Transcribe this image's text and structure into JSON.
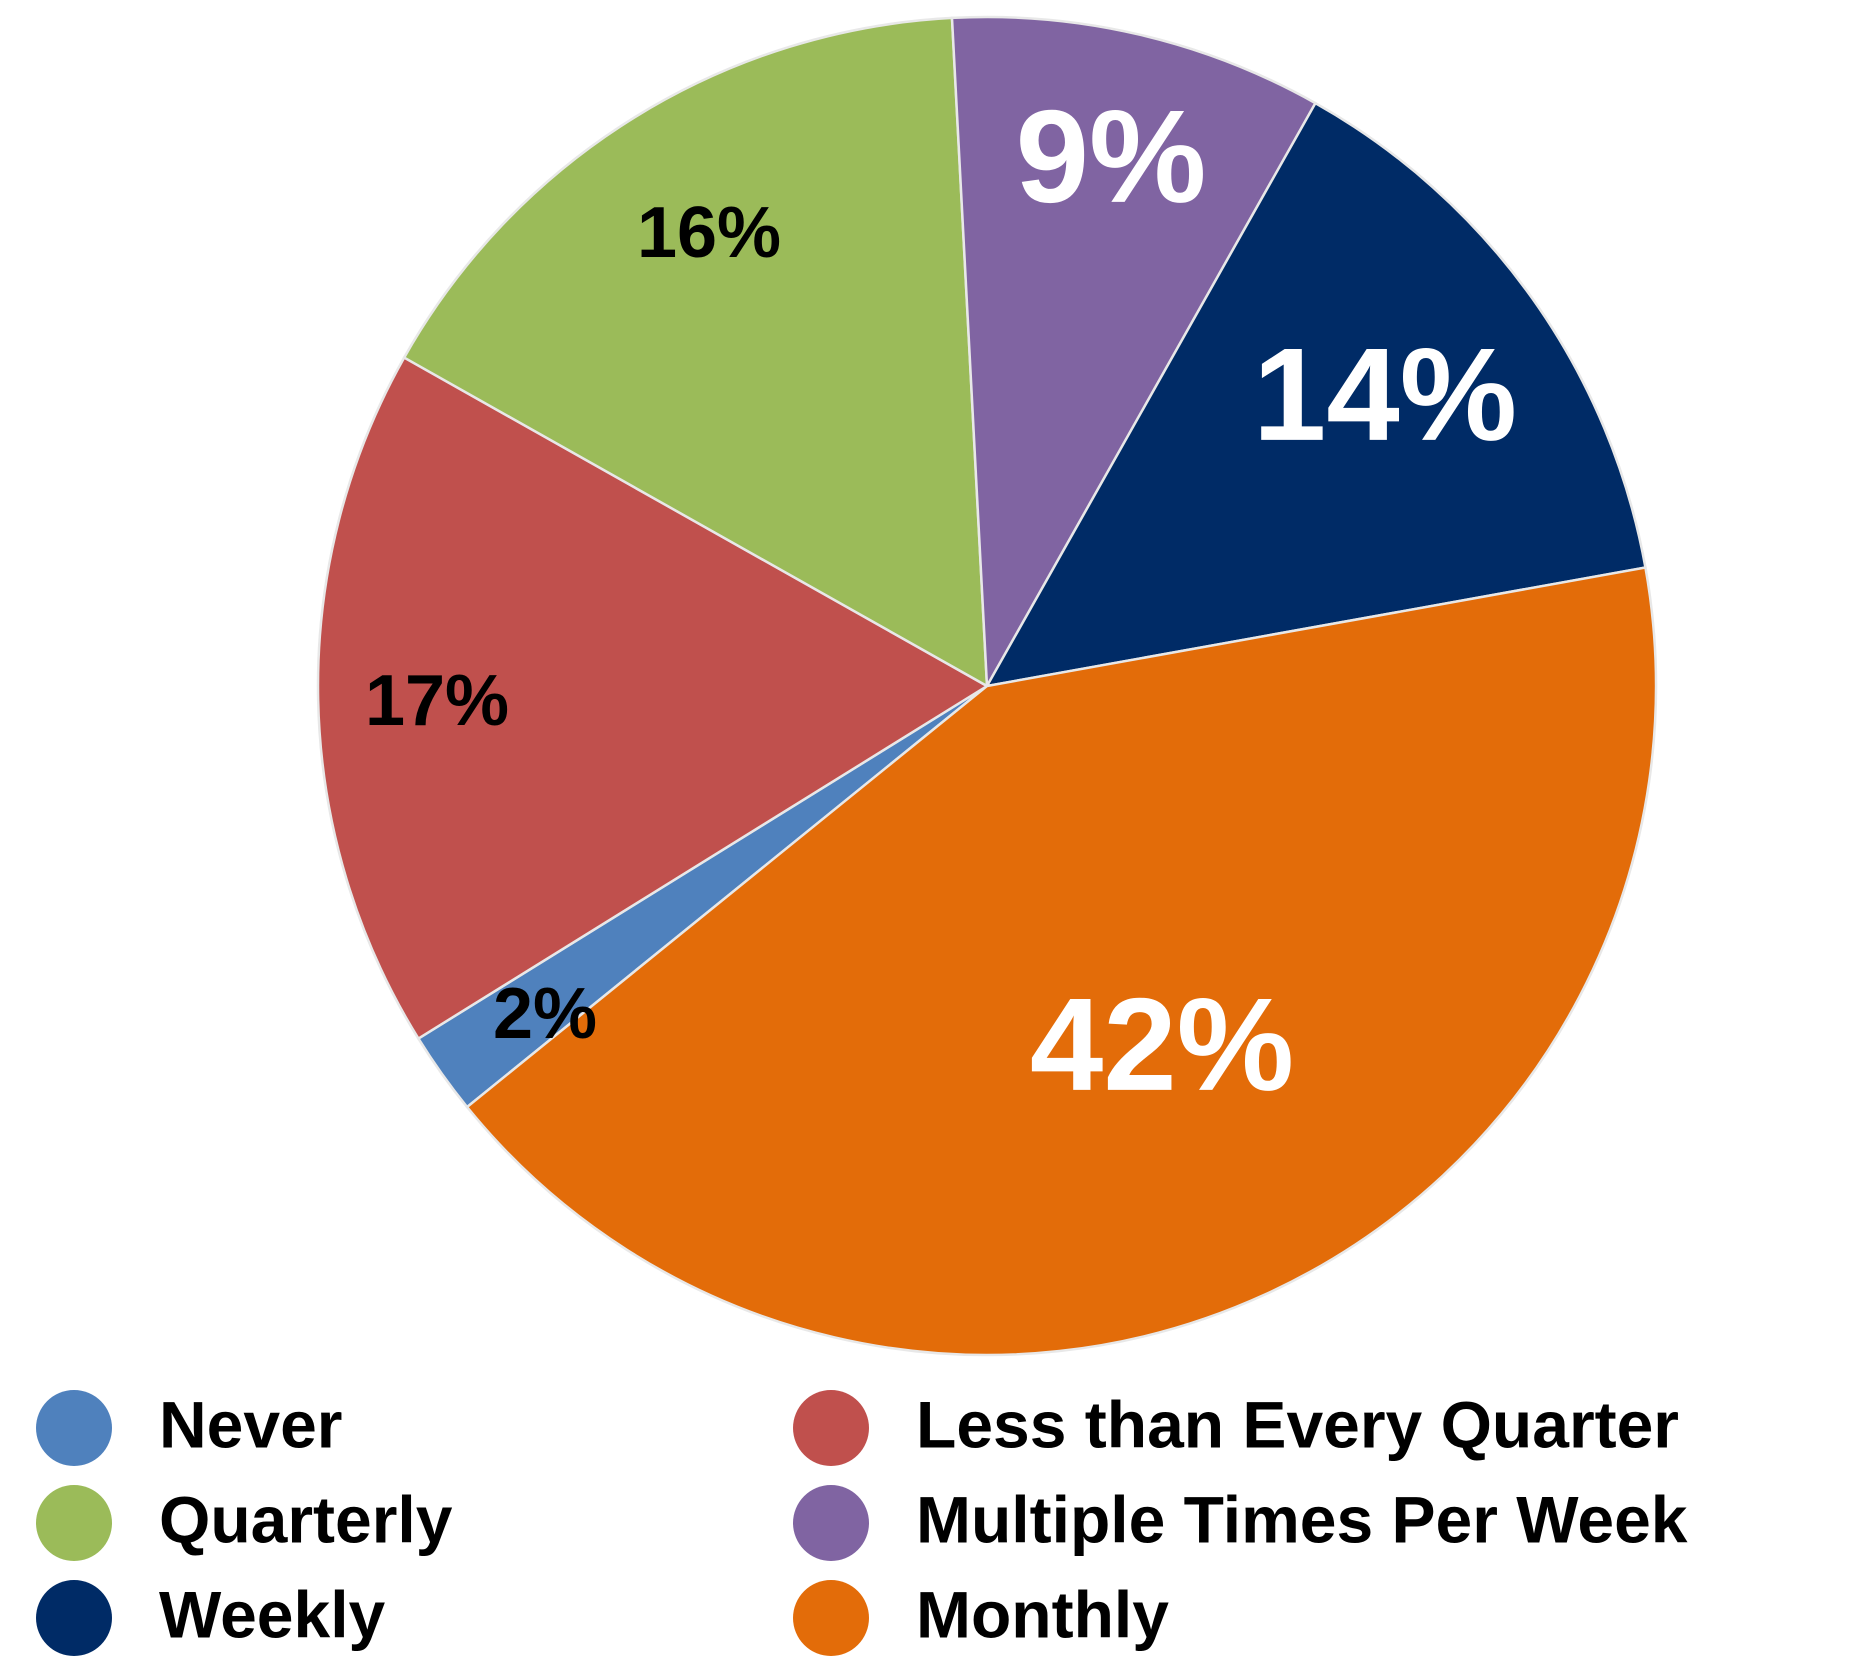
{
  "chart_data": {
    "type": "pie",
    "categories": [
      "Never",
      "Less than Every Quarter",
      "Quarterly",
      "Multiple Times Per Week",
      "Weekly",
      "Monthly"
    ],
    "values": [
      2,
      17,
      16,
      9,
      14,
      42
    ],
    "value_labels": [
      "2%",
      "17%",
      "16%",
      "9%",
      "14%",
      "42%"
    ],
    "colors": [
      "#4f81bd",
      "#c0504d",
      "#9bbb59",
      "#8064a2",
      "#002b66",
      "#e36c09"
    ],
    "label_colors": [
      "#000000",
      "#000000",
      "#000000",
      "#ffffff",
      "#ffffff",
      "#ffffff"
    ],
    "legend": "bottom"
  }
}
